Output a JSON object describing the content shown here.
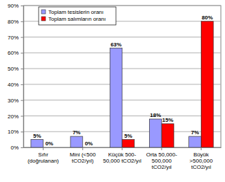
{
  "chart_data": {
    "type": "bar",
    "categories": [
      "Sıfır\n(doğrulanan)",
      "Mini (<500\ntCO2/yıl)",
      "Küçük 500-\n50,000 tCO2/yıl",
      "Orta 50,000-\n500,000\ntCO2/yıl",
      "Büyük\n>500,000\ntCO2/yıl"
    ],
    "series": [
      {
        "name": "Toplam tesislerin oranı",
        "color": "#9999ff",
        "values": [
          5,
          7,
          63,
          18,
          7
        ],
        "value_labels": [
          "5%",
          "7%",
          "63%",
          "18%",
          "7%"
        ]
      },
      {
        "name": "Toplam salımların oranı",
        "color": "#ff0000",
        "values": [
          0,
          0,
          5,
          15,
          80
        ],
        "value_labels": [
          "0%",
          "0%",
          "5%",
          "15%",
          "80%"
        ]
      }
    ],
    "ylim": [
      0,
      90
    ],
    "yticks": [
      {
        "value": 0,
        "label": "0%"
      },
      {
        "value": 10,
        "label": "10%"
      },
      {
        "value": 20,
        "label": "20%"
      },
      {
        "value": 30,
        "label": "30%"
      },
      {
        "value": 40,
        "label": "40%"
      },
      {
        "value": 50,
        "label": "50%"
      },
      {
        "value": 60,
        "label": "60%"
      },
      {
        "value": 70,
        "label": "70%"
      },
      {
        "value": 80,
        "label": "80%"
      },
      {
        "value": 90,
        "label": "90%"
      }
    ],
    "grid": true,
    "legend": "top-left",
    "data_labels": true
  }
}
